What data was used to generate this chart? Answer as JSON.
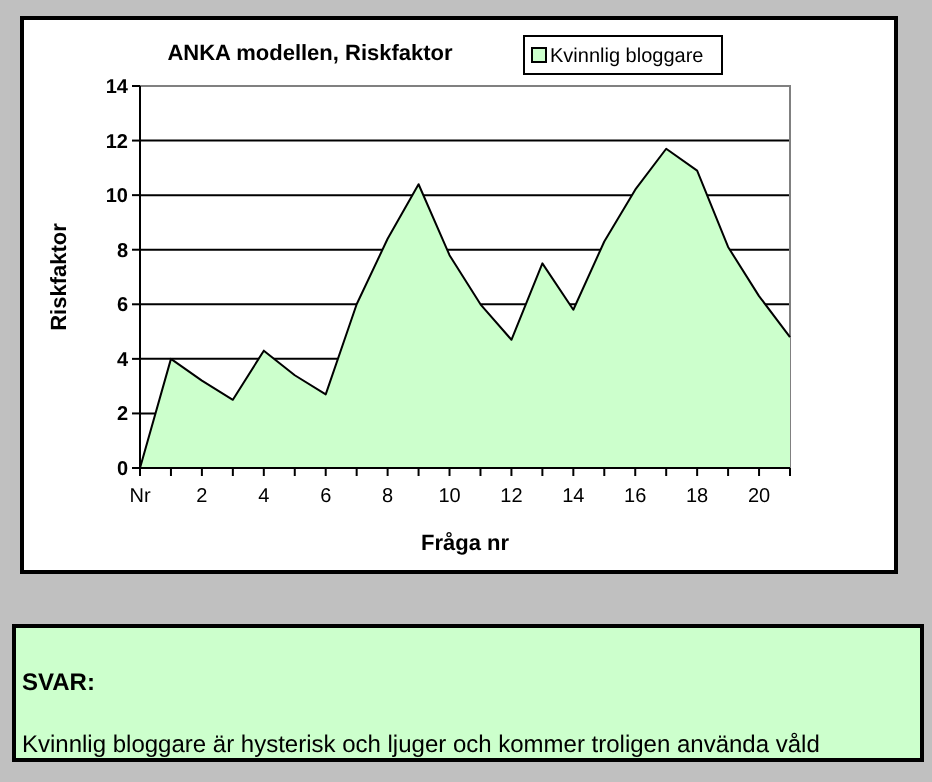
{
  "chart_data": {
    "type": "area",
    "title": "ANKA modellen, Riskfaktor",
    "xlabel": "Fråga nr",
    "ylabel": "Riskfaktor",
    "x": [
      0,
      1,
      2,
      3,
      4,
      5,
      6,
      7,
      8,
      9,
      10,
      11,
      12,
      13,
      14,
      15,
      16,
      17,
      18,
      19,
      20,
      21
    ],
    "series": [
      {
        "name": "Kvinnlig bloggare",
        "color": "#ccffcc",
        "values": [
          0,
          4.0,
          3.2,
          2.5,
          4.3,
          3.4,
          2.7,
          6.0,
          8.4,
          10.4,
          7.8,
          6.0,
          4.7,
          7.5,
          5.8,
          8.3,
          10.2,
          11.7,
          10.9,
          8.1,
          6.3,
          4.8
        ]
      }
    ],
    "xlim": [
      0,
      21
    ],
    "xticks": [
      {
        "value": 0,
        "label": "Nr"
      },
      2,
      4,
      6,
      8,
      10,
      12,
      14,
      16,
      18,
      20
    ],
    "ylim": [
      0,
      14
    ],
    "yticks": [
      0,
      2,
      4,
      6,
      8,
      10,
      12,
      14
    ],
    "grid": "y",
    "legend": "top right",
    "annotations": [
      "SVAR:",
      "Kvinnlig bloggare är hysterisk och ljuger och kommer troligen använda våld"
    ]
  }
}
